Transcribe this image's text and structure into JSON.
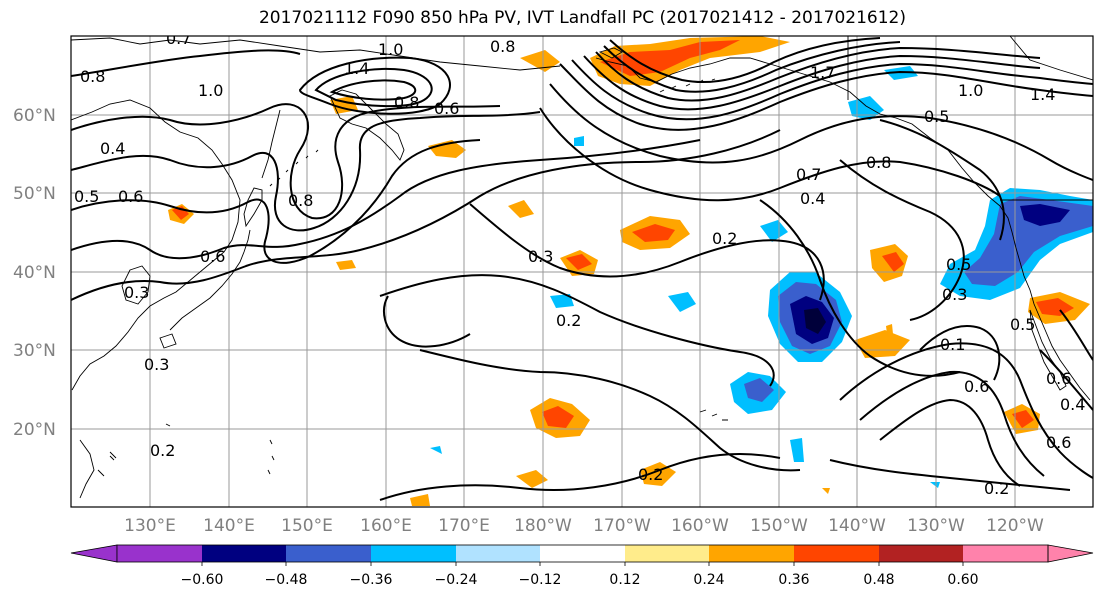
{
  "title": "2017021112 F090 850 hPa PV, IVT Landfall PC (2017021412 - 2017021612)",
  "lat_labels": [
    "60°N",
    "50°N",
    "40°N",
    "30°N",
    "20°N"
  ],
  "lon_labels": [
    "130°E",
    "140°E",
    "150°E",
    "160°E",
    "170°E",
    "180°W",
    "170°W",
    "160°W",
    "150°W",
    "140°W",
    "130°W",
    "120°W"
  ],
  "colorbar": {
    "colors": [
      "#9932cc",
      "#000080",
      "#3a5fcd",
      "#00bfff",
      "#b0e2ff",
      "#ffffff",
      "#ffec8b",
      "#ffa500",
      "#ff4500",
      "#b22222",
      "#ff82ab"
    ],
    "tick_labels": [
      "−0.60",
      "−0.48",
      "−0.36",
      "−0.24",
      "−0.12",
      "0.12",
      "0.24",
      "0.36",
      "0.48",
      "0.60"
    ]
  },
  "contour_labels": [
    "0.7",
    "1.0",
    "0.8",
    "1.4",
    "1.0",
    "0.8",
    "0.6",
    "0.8",
    "1.7",
    "1.0",
    "1.4",
    "0.5",
    "0.8",
    "0.7",
    "0.4",
    "0.6",
    "0.4",
    "0.3",
    "0.5",
    "0.8",
    "0.6",
    "0.3",
    "0.2",
    "0.3",
    "0.2",
    "0.5",
    "0.3",
    "0.2",
    "0.2",
    "0.1",
    "0.6",
    "0.5",
    "0.6",
    "0.4",
    "0.2",
    "0.6"
  ]
}
